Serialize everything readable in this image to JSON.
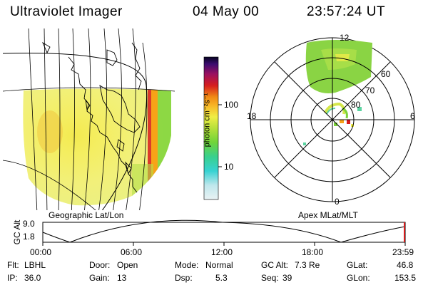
{
  "header": {
    "title": "Ultraviolet Imager",
    "date": "04 May 00",
    "time": "23:57:24 UT"
  },
  "colors": {
    "background": "#ffffff",
    "green": "#7cd33a",
    "yellow": "#f3ee45",
    "orange": "#f7a318",
    "red": "#d81b1b"
  },
  "left_panel": {
    "caption": "Geographic Lat/Lon"
  },
  "colorbar": {
    "label": "photon cm⁻²s⁻¹",
    "ticks": [
      "100",
      "10"
    ],
    "tick_values": [
      100,
      10
    ]
  },
  "polar_panel": {
    "caption": "Apex MLat/MLT",
    "mlt_labels": {
      "top": "12",
      "left": "18",
      "right": "6",
      "bottom": "0"
    },
    "mlat_labels": [
      "60",
      "70",
      "80"
    ]
  },
  "altitude_plot": {
    "ylabel": "GC Alt",
    "yticks": [
      "9.0",
      "1.8"
    ],
    "xticks": [
      "00:00",
      "06:00",
      "12:00",
      "18:00",
      "23:59"
    ]
  },
  "status": {
    "row1": [
      {
        "label": "Flt:",
        "value": "LBHL"
      },
      {
        "label": "Door:",
        "value": "Open"
      },
      {
        "label": "Mode:",
        "value": "Normal"
      },
      {
        "label": "GC Alt:",
        "value": "7.3 Re"
      },
      {
        "label": "GLat:",
        "value": "46.8"
      }
    ],
    "row2": [
      {
        "label": "IP:",
        "value": "36.0"
      },
      {
        "label": "Gain:",
        "value": "13"
      },
      {
        "label": "Dsp:",
        "value": "5.3"
      },
      {
        "label": "Seq:",
        "value": "39"
      },
      {
        "label": "GLon:",
        "value": "153.5"
      }
    ]
  }
}
